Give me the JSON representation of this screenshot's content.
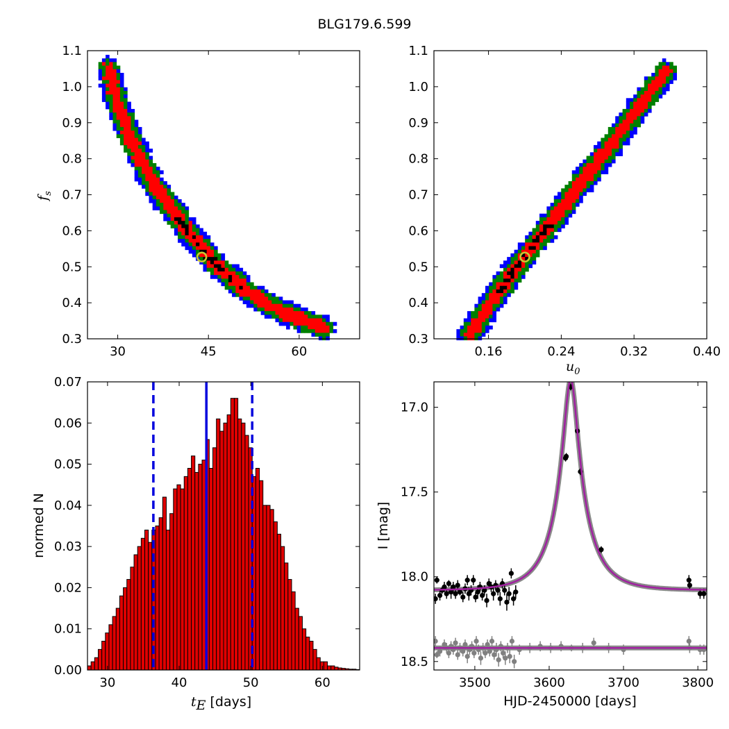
{
  "title": "BLG179.6.599",
  "colors": {
    "sigma1": "#ff0000",
    "sigma2": "#008000",
    "sigma3": "#0000ff",
    "best": "#000000",
    "marker": "#c8c832",
    "bars": "#e00000",
    "model": "#a020a0",
    "data_main": "#000000",
    "data_second": "#808080",
    "vlines": "#0000dd"
  },
  "chart_data": [
    {
      "type": "heatmap",
      "id": "fs_vs_tE",
      "xlabel": "",
      "ylabel": "f_s",
      "ylabel_text": "f",
      "ylabel_sub": "s",
      "xlim": [
        25,
        70
      ],
      "ylim": [
        0.3,
        1.1
      ],
      "xticks": [
        30,
        45,
        60
      ],
      "yticks": [
        0.3,
        0.4,
        0.5,
        0.6,
        0.7,
        0.8,
        0.9,
        1.0,
        1.1
      ],
      "band_centerline": [
        [
          28.5,
          1.05
        ],
        [
          30,
          0.95
        ],
        [
          32,
          0.86
        ],
        [
          34,
          0.79
        ],
        [
          36,
          0.73
        ],
        [
          38,
          0.68
        ],
        [
          40,
          0.635
        ],
        [
          42,
          0.59
        ],
        [
          44,
          0.55
        ],
        [
          46,
          0.51
        ],
        [
          48,
          0.48
        ],
        [
          50,
          0.45
        ],
        [
          52,
          0.425
        ],
        [
          55,
          0.395
        ],
        [
          58,
          0.37
        ],
        [
          61,
          0.35
        ],
        [
          64,
          0.33
        ]
      ],
      "best_fit": [
        43.9,
        0.527
      ]
    },
    {
      "type": "heatmap",
      "id": "fs_vs_u0",
      "xlabel": "u_0",
      "xlabel_text": "u",
      "xlabel_sub": "0",
      "ylabel": "",
      "xlim": [
        0.1,
        0.4
      ],
      "ylim": [
        0.3,
        1.1
      ],
      "xticks": [
        0.16,
        0.24,
        0.32,
        0.4
      ],
      "xticklabels": [
        "0.16",
        "0.24",
        "0.32",
        "0.40"
      ],
      "yticks": [
        0.3,
        0.4,
        0.5,
        0.6,
        0.7,
        0.8,
        0.9,
        1.0,
        1.1
      ],
      "band_centerline": [
        [
          0.14,
          0.31
        ],
        [
          0.16,
          0.39
        ],
        [
          0.18,
          0.46
        ],
        [
          0.2,
          0.53
        ],
        [
          0.22,
          0.595
        ],
        [
          0.24,
          0.66
        ],
        [
          0.26,
          0.725
        ],
        [
          0.28,
          0.79
        ],
        [
          0.3,
          0.855
        ],
        [
          0.32,
          0.925
        ],
        [
          0.34,
          0.99
        ],
        [
          0.355,
          1.04
        ]
      ],
      "best_fit": [
        0.2,
        0.527
      ]
    },
    {
      "type": "bar",
      "id": "tE_histogram",
      "xlabel": "t_E [days]",
      "xlabel_math": "t",
      "xlabel_sub": "E",
      "xlabel_rest": "[days]",
      "ylabel": "normed N",
      "xlim": [
        27.2,
        65.2
      ],
      "ylim": [
        0,
        0.07
      ],
      "xticks": [
        30,
        40,
        50,
        60
      ],
      "yticks": [
        0.0,
        0.01,
        0.02,
        0.03,
        0.04,
        0.05,
        0.06,
        0.07
      ],
      "yticklabels": [
        "0.00",
        "0.01",
        "0.02",
        "0.03",
        "0.04",
        "0.05",
        "0.06",
        "0.07"
      ],
      "bin_start": 27.2,
      "bin_width": 0.5,
      "values": [
        0.001,
        0.002,
        0.003,
        0.005,
        0.007,
        0.009,
        0.011,
        0.013,
        0.015,
        0.018,
        0.02,
        0.022,
        0.025,
        0.028,
        0.03,
        0.032,
        0.034,
        0.031,
        0.034,
        0.035,
        0.037,
        0.042,
        0.034,
        0.038,
        0.044,
        0.045,
        0.044,
        0.047,
        0.049,
        0.052,
        0.048,
        0.05,
        0.051,
        0.056,
        0.049,
        0.054,
        0.061,
        0.058,
        0.06,
        0.062,
        0.066,
        0.066,
        0.061,
        0.06,
        0.057,
        0.054,
        0.047,
        0.049,
        0.046,
        0.04,
        0.04,
        0.039,
        0.036,
        0.033,
        0.03,
        0.026,
        0.022,
        0.019,
        0.015,
        0.013,
        0.01,
        0.008,
        0.007,
        0.005,
        0.003,
        0.002,
        0.002,
        0.001,
        0.001,
        0.0007,
        0.0005,
        0.0004,
        0.0003,
        0.0002,
        0.0002,
        0.0001
      ],
      "median_line": 43.8,
      "sigma_lines": [
        36.4,
        50.2
      ]
    },
    {
      "type": "scatter",
      "id": "lightcurve",
      "xlabel": "HJD-2450000 [days]",
      "ylabel": "I [mag]",
      "xlim": [
        3445,
        3812
      ],
      "ylim": [
        18.55,
        16.85
      ],
      "xticks": [
        3500,
        3600,
        3700,
        3800
      ],
      "yticks": [
        17.0,
        17.5,
        18.0,
        18.5
      ],
      "yticklabels": [
        "17.0",
        "17.5",
        "18.0",
        "18.5"
      ],
      "model": {
        "t0": 3629,
        "u0": 0.2,
        "tE": 43.8,
        "baseline": 18.08,
        "fs": 0.527
      },
      "second_baseline": 18.42,
      "points_main": [
        [
          3447,
          18.13,
          0.03
        ],
        [
          3449,
          18.02,
          0.02
        ],
        [
          3453,
          18.11,
          0.03
        ],
        [
          3456,
          18.08,
          0.02
        ],
        [
          3459,
          18.06,
          0.03
        ],
        [
          3462,
          18.1,
          0.03
        ],
        [
          3465,
          18.04,
          0.02
        ],
        [
          3468,
          18.09,
          0.04
        ],
        [
          3471,
          18.06,
          0.03
        ],
        [
          3474,
          18.1,
          0.03
        ],
        [
          3477,
          18.05,
          0.03
        ],
        [
          3480,
          18.09,
          0.02
        ],
        [
          3484,
          18.12,
          0.03
        ],
        [
          3487,
          18.07,
          0.03
        ],
        [
          3490,
          18.02,
          0.03
        ],
        [
          3492,
          18.1,
          0.04
        ],
        [
          3495,
          18.08,
          0.03
        ],
        [
          3498,
          18.02,
          0.03
        ],
        [
          3501,
          18.12,
          0.03
        ],
        [
          3504,
          18.09,
          0.04
        ],
        [
          3507,
          18.06,
          0.03
        ],
        [
          3510,
          18.11,
          0.03
        ],
        [
          3513,
          18.08,
          0.03
        ],
        [
          3516,
          18.14,
          0.04
        ],
        [
          3519,
          18.04,
          0.03
        ],
        [
          3522,
          18.06,
          0.03
        ],
        [
          3525,
          18.1,
          0.04
        ],
        [
          3528,
          18.05,
          0.03
        ],
        [
          3531,
          18.08,
          0.03
        ],
        [
          3534,
          18.13,
          0.04
        ],
        [
          3537,
          18.04,
          0.03
        ],
        [
          3540,
          18.08,
          0.03
        ],
        [
          3543,
          18.15,
          0.05
        ],
        [
          3546,
          18.1,
          0.04
        ],
        [
          3549,
          17.98,
          0.03
        ],
        [
          3552,
          18.13,
          0.04
        ],
        [
          3555,
          18.09,
          0.04
        ],
        [
          3622,
          17.3,
          0.02
        ],
        [
          3623,
          17.29,
          0.02
        ],
        [
          3629,
          16.88,
          0.02
        ],
        [
          3638,
          17.14,
          0.02
        ],
        [
          3642,
          17.38,
          0.02
        ],
        [
          3670,
          17.84,
          0.02
        ],
        [
          3788,
          18.02,
          0.03
        ],
        [
          3789,
          18.05,
          0.03
        ],
        [
          3803,
          18.1,
          0.03
        ],
        [
          3808,
          18.1,
          0.03
        ]
      ],
      "points_second": [
        [
          3447,
          18.38,
          0.03
        ],
        [
          3449,
          18.46,
          0.02
        ],
        [
          3453,
          18.44,
          0.03
        ],
        [
          3459,
          18.4,
          0.03
        ],
        [
          3462,
          18.42,
          0.03
        ],
        [
          3465,
          18.45,
          0.03
        ],
        [
          3468,
          18.41,
          0.03
        ],
        [
          3471,
          18.43,
          0.03
        ],
        [
          3474,
          18.39,
          0.03
        ],
        [
          3477,
          18.46,
          0.03
        ],
        [
          3480,
          18.42,
          0.03
        ],
        [
          3484,
          18.44,
          0.03
        ],
        [
          3487,
          18.4,
          0.03
        ],
        [
          3490,
          18.47,
          0.04
        ],
        [
          3493,
          18.43,
          0.03
        ],
        [
          3496,
          18.41,
          0.03
        ],
        [
          3499,
          18.45,
          0.03
        ],
        [
          3502,
          18.38,
          0.03
        ],
        [
          3505,
          18.43,
          0.03
        ],
        [
          3508,
          18.48,
          0.04
        ],
        [
          3511,
          18.42,
          0.03
        ],
        [
          3514,
          18.45,
          0.03
        ],
        [
          3517,
          18.4,
          0.03
        ],
        [
          3520,
          18.44,
          0.03
        ],
        [
          3523,
          18.38,
          0.03
        ],
        [
          3526,
          18.46,
          0.03
        ],
        [
          3529,
          18.43,
          0.04
        ],
        [
          3532,
          18.49,
          0.04
        ],
        [
          3535,
          18.41,
          0.03
        ],
        [
          3538,
          18.45,
          0.03
        ],
        [
          3541,
          18.48,
          0.04
        ],
        [
          3544,
          18.42,
          0.03
        ],
        [
          3547,
          18.47,
          0.04
        ],
        [
          3550,
          18.38,
          0.03
        ],
        [
          3553,
          18.5,
          0.04
        ],
        [
          3560,
          18.43,
          0.03
        ],
        [
          3574,
          18.42,
          0.03
        ],
        [
          3588,
          18.41,
          0.03
        ],
        [
          3602,
          18.42,
          0.03
        ],
        [
          3616,
          18.41,
          0.03
        ],
        [
          3630,
          18.42,
          0.02
        ],
        [
          3645,
          18.42,
          0.03
        ],
        [
          3660,
          18.39,
          0.03
        ],
        [
          3680,
          18.42,
          0.03
        ],
        [
          3700,
          18.43,
          0.03
        ],
        [
          3788,
          18.38,
          0.03
        ],
        [
          3789,
          18.42,
          0.03
        ],
        [
          3803,
          18.43,
          0.03
        ],
        [
          3808,
          18.43,
          0.03
        ]
      ]
    }
  ]
}
